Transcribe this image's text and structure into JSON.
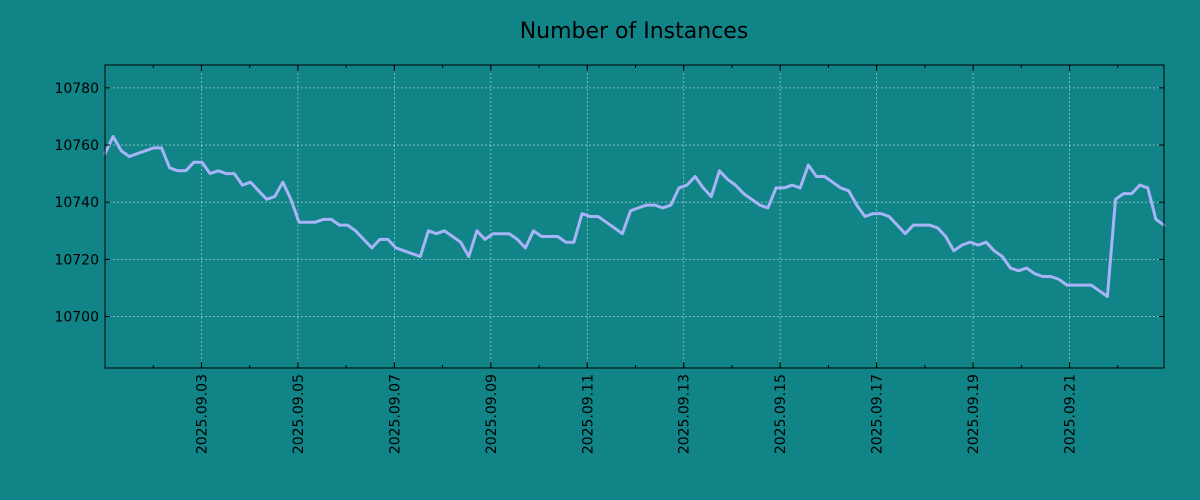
{
  "chart_data": {
    "type": "line",
    "title": "Number of Instances",
    "xlabel": "",
    "ylabel": "",
    "x_start": "2025.09.01",
    "x_end": "2025.09.22 23:00",
    "xlim": [
      "2025.09.01",
      "2025.09.22 23:00"
    ],
    "ylim": [
      10682,
      10788
    ],
    "yticks": [
      10700,
      10720,
      10740,
      10760,
      10780
    ],
    "xticks": [
      "2025.09.03",
      "2025.09.05",
      "2025.09.07",
      "2025.09.09",
      "2025.09.11",
      "2025.09.13",
      "2025.09.15",
      "2025.09.17",
      "2025.09.19",
      "2025.09.21"
    ],
    "grid": true,
    "line_color": "#a8b4f8",
    "background_color": "#108487",
    "series": [
      {
        "values": [
          10757,
          10763,
          10758,
          10756,
          10757,
          10758,
          10759,
          10759,
          10752,
          10751,
          10751,
          10754,
          10754,
          10750,
          10751,
          10750,
          10750,
          10746,
          10747,
          10744,
          10741,
          10742,
          10747,
          10741,
          10733,
          10733,
          10733,
          10734,
          10734,
          10732,
          10732,
          10730,
          10727,
          10724,
          10727,
          10727,
          10724,
          10723,
          10722,
          10721,
          10730,
          10729,
          10730,
          10728,
          10726,
          10721,
          10730,
          10727,
          10729,
          10729,
          10729,
          10727,
          10724,
          10730,
          10728,
          10728,
          10728,
          10726,
          10726,
          10736,
          10735,
          10735,
          10733,
          10731,
          10729,
          10737,
          10738,
          10739,
          10739,
          10738,
          10739,
          10745,
          10746,
          10749,
          10745,
          10742,
          10751,
          10748,
          10746,
          10743,
          10741,
          10739,
          10738,
          10745,
          10745,
          10746,
          10745,
          10753,
          10749,
          10749,
          10747,
          10745,
          10744,
          10739,
          10735,
          10736,
          10736,
          10735,
          10732,
          10729,
          10732,
          10732,
          10732,
          10731,
          10728,
          10723,
          10725,
          10726,
          10725,
          10726,
          10723,
          10721,
          10717,
          10716,
          10717,
          10715,
          10714,
          10714,
          10713,
          10711,
          10711,
          10711,
          10711,
          10709,
          10707,
          10741,
          10743,
          10743,
          10746,
          10745,
          10734,
          10732
        ]
      }
    ]
  }
}
